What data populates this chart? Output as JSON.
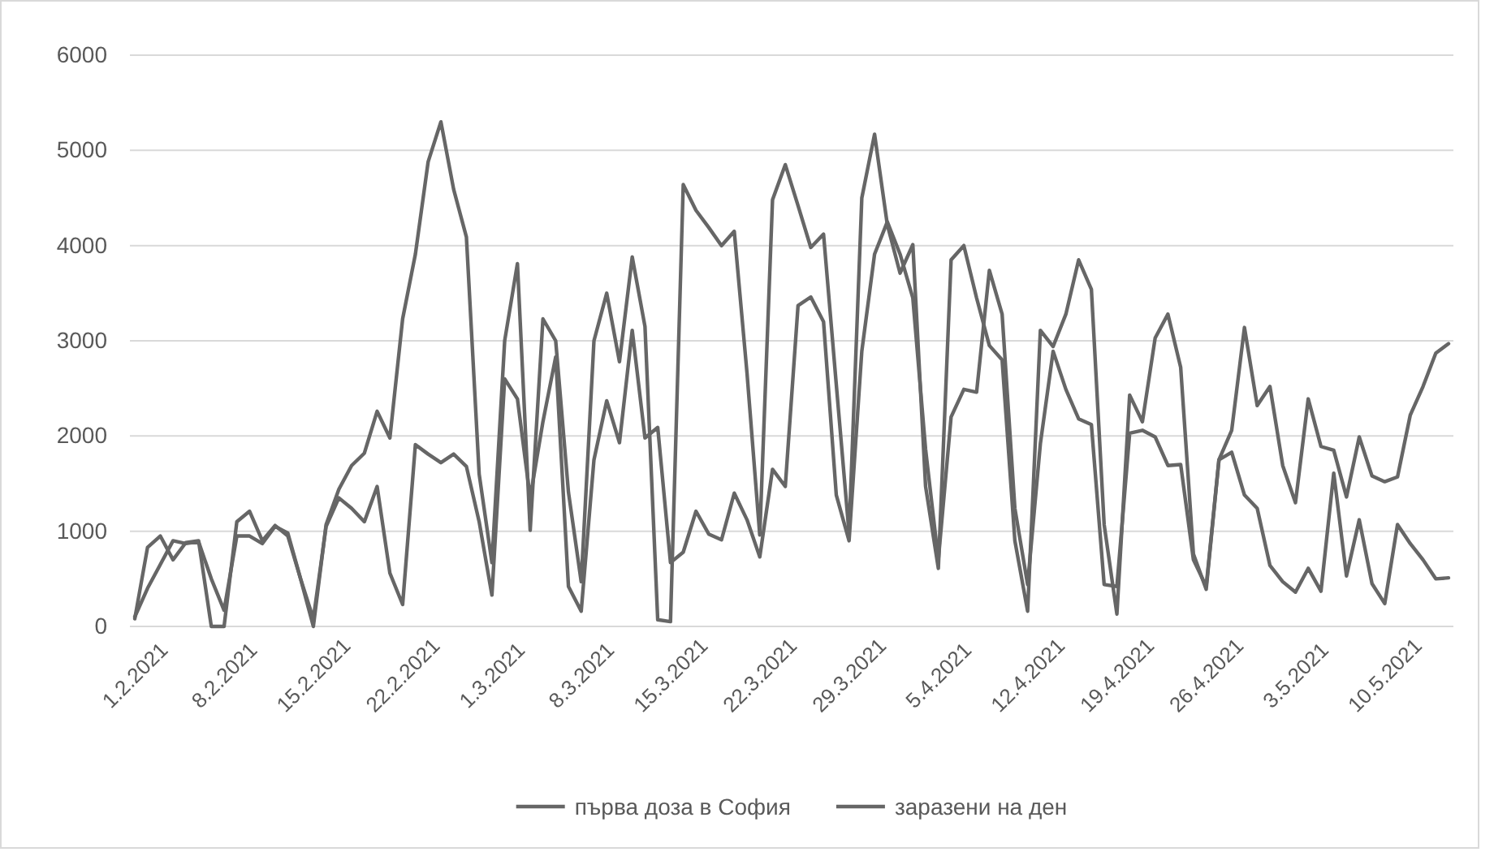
{
  "chart_data": {
    "type": "line",
    "categories": [
      "1.2.2021",
      null,
      null,
      null,
      null,
      null,
      null,
      "8.2.2021",
      null,
      null,
      null,
      null,
      null,
      null,
      "15.2.2021",
      null,
      null,
      null,
      null,
      null,
      null,
      "22.2.2021",
      null,
      null,
      null,
      null,
      null,
      null,
      "1.3.2021",
      null,
      null,
      null,
      null,
      null,
      null,
      "8.3.2021",
      null,
      null,
      null,
      null,
      null,
      null,
      "15.3.2021",
      null,
      null,
      null,
      null,
      null,
      null,
      "22.3.2021",
      null,
      null,
      null,
      null,
      null,
      null,
      "29.3.2021",
      null,
      null,
      null,
      null,
      null,
      null,
      "5.4.2021",
      null,
      null,
      null,
      null,
      null,
      null,
      "12.4.2021",
      null,
      null,
      null,
      null,
      null,
      null,
      "19.4.2021",
      null,
      null,
      null,
      null,
      null,
      null,
      "26.4.2021",
      null,
      null,
      null,
      null,
      null,
      null,
      "3.5.2021",
      null,
      null,
      null,
      null,
      null,
      null,
      "10.5.2021",
      null,
      null,
      null,
      null,
      null
    ],
    "series": [
      {
        "name": "първа доза в София",
        "color": "#666666",
        "values": [
          80,
          830,
          950,
          700,
          880,
          900,
          0,
          0,
          1100,
          1210,
          900,
          1060,
          950,
          500,
          0,
          1070,
          1440,
          1690,
          1820,
          2260,
          1980,
          3230,
          3910,
          4880,
          5300,
          4590,
          4090,
          1600,
          670,
          3000,
          3810,
          1010,
          3230,
          3000,
          1410,
          470,
          3000,
          3500,
          2780,
          3880,
          3150,
          70,
          50,
          4640,
          4370,
          4190,
          4000,
          4150,
          2660,
          960,
          4480,
          4850,
          4420,
          3980,
          4120,
          2540,
          980,
          4500,
          5170,
          4220,
          3710,
          4010,
          1470,
          610,
          3850,
          4000,
          3450,
          2950,
          2800,
          900,
          160,
          3110,
          2940,
          3280,
          3850,
          3540,
          1070,
          130,
          2430,
          2150,
          3030,
          3280,
          2720,
          760,
          390,
          1750,
          2060,
          3140,
          2320,
          2520,
          1690,
          1300,
          2390,
          1890,
          1850,
          1360,
          1990,
          1580,
          1520,
          1570,
          2220,
          2520,
          2870,
          2970
        ]
      },
      {
        "name": "заразени на ден",
        "color": "#666666",
        "values": [
          100,
          400,
          650,
          900,
          870,
          890,
          500,
          170,
          950,
          950,
          870,
          1050,
          980,
          500,
          80,
          1050,
          1350,
          1240,
          1100,
          1470,
          560,
          230,
          1910,
          1810,
          1720,
          1810,
          1680,
          1100,
          330,
          2600,
          2390,
          1350,
          2150,
          2830,
          420,
          160,
          1750,
          2370,
          1930,
          3110,
          1980,
          2090,
          670,
          780,
          1210,
          970,
          910,
          1400,
          1120,
          730,
          1650,
          1470,
          3370,
          3460,
          3200,
          1380,
          900,
          2890,
          3910,
          4250,
          3910,
          3450,
          1860,
          700,
          2200,
          2490,
          2460,
          3740,
          3280,
          1240,
          440,
          1920,
          2890,
          2490,
          2180,
          2120,
          440,
          420,
          2030,
          2060,
          1990,
          1690,
          1700,
          700,
          420,
          1750,
          1830,
          1380,
          1240,
          640,
          470,
          360,
          610,
          370,
          1610,
          530,
          1120,
          450,
          240,
          1070,
          870,
          700,
          500,
          510
        ]
      }
    ],
    "ylim": [
      0,
      6000
    ],
    "yticks": [
      0,
      1000,
      2000,
      3000,
      4000,
      5000,
      6000
    ],
    "grid": "y",
    "legend": "bottom",
    "line_style": "solid",
    "marker": "none"
  }
}
